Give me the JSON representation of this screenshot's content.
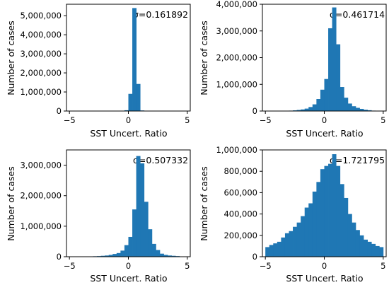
{
  "chart_data": [
    {
      "type": "bar",
      "annotation": "σ=0.161892",
      "xlabel": "SST Uncert. Ratio",
      "ylabel": "Number of cases",
      "xlim": [
        -5.25,
        5.25
      ],
      "ylim": [
        0,
        5600000
      ],
      "xticks": [
        -5,
        0,
        5
      ],
      "yticks": [
        0,
        1000000,
        2000000,
        3000000,
        4000000,
        5000000
      ],
      "yticklabels": [
        "0",
        "1,000,000",
        "2,000,000",
        "3,000,000",
        "4,000,000",
        "5,000,000"
      ],
      "bin_edges_start": -5,
      "bin_width": 0.3333,
      "values": [
        0,
        0,
        0,
        0,
        0,
        0,
        0,
        0,
        0,
        0,
        0,
        0,
        0,
        0,
        40000,
        900000,
        5400000,
        1420000,
        30000,
        0,
        0,
        0,
        0,
        0,
        0,
        0,
        0,
        0,
        0,
        0
      ],
      "bar_color": "#1f77b4"
    },
    {
      "type": "bar",
      "annotation": "σ=0.461714",
      "xlabel": "SST Uncert. Ratio",
      "ylabel": "Number of cases",
      "xlim": [
        -5.25,
        5.25
      ],
      "ylim": [
        0,
        4000000
      ],
      "xticks": [
        -5,
        0,
        5
      ],
      "yticks": [
        0,
        1000000,
        2000000,
        3000000,
        4000000
      ],
      "yticklabels": [
        "0",
        "1,000,000",
        "2,000,000",
        "3,000,000",
        "4,000,000"
      ],
      "bin_edges_start": -5,
      "bin_width": 0.3333,
      "values": [
        0,
        0,
        0,
        0,
        0,
        10000,
        15000,
        25000,
        40000,
        60000,
        90000,
        150000,
        250000,
        450000,
        800000,
        1200000,
        3100000,
        3880000,
        2500000,
        900000,
        500000,
        280000,
        180000,
        120000,
        80000,
        50000,
        30000,
        15000,
        10000,
        0
      ],
      "bar_color": "#1f77b4"
    },
    {
      "type": "bar",
      "annotation": "σ=0.507332",
      "xlabel": "SST Uncert. Ratio",
      "ylabel": "Number of cases",
      "xlim": [
        -5.25,
        5.25
      ],
      "ylim": [
        0,
        3500000
      ],
      "xticks": [
        -5,
        0,
        5
      ],
      "yticks": [
        0,
        1000000,
        2000000,
        3000000
      ],
      "yticklabels": [
        "0",
        "1,000,000",
        "2,000,000",
        "3,000,000"
      ],
      "bin_edges_start": -5,
      "bin_width": 0.3333,
      "values": [
        0,
        0,
        0,
        0,
        0,
        10000,
        15000,
        20000,
        30000,
        40000,
        60000,
        90000,
        120000,
        200000,
        380000,
        650000,
        1550000,
        3300000,
        3060000,
        1800000,
        900000,
        420000,
        220000,
        100000,
        60000,
        40000,
        30000,
        20000,
        10000,
        0
      ],
      "bar_color": "#1f77b4"
    },
    {
      "type": "bar",
      "annotation": "σ=1.721795",
      "xlabel": "SST Uncert. Ratio",
      "ylabel": "Number of cases",
      "xlim": [
        -5.25,
        5.25
      ],
      "ylim": [
        0,
        1000000
      ],
      "xticks": [
        -5,
        0,
        5
      ],
      "yticks": [
        0,
        200000,
        400000,
        600000,
        800000,
        1000000
      ],
      "yticklabels": [
        "0",
        "200,000",
        "400,000",
        "600,000",
        "800,000",
        "1,000,000"
      ],
      "bin_edges_start": -5,
      "bin_width": 0.3333,
      "values": [
        90000,
        110000,
        125000,
        140000,
        180000,
        220000,
        240000,
        280000,
        320000,
        380000,
        460000,
        500000,
        610000,
        700000,
        820000,
        850000,
        870000,
        960000,
        850000,
        680000,
        550000,
        400000,
        320000,
        250000,
        200000,
        160000,
        140000,
        120000,
        100000,
        90000
      ],
      "bar_color": "#1f77b4"
    }
  ]
}
